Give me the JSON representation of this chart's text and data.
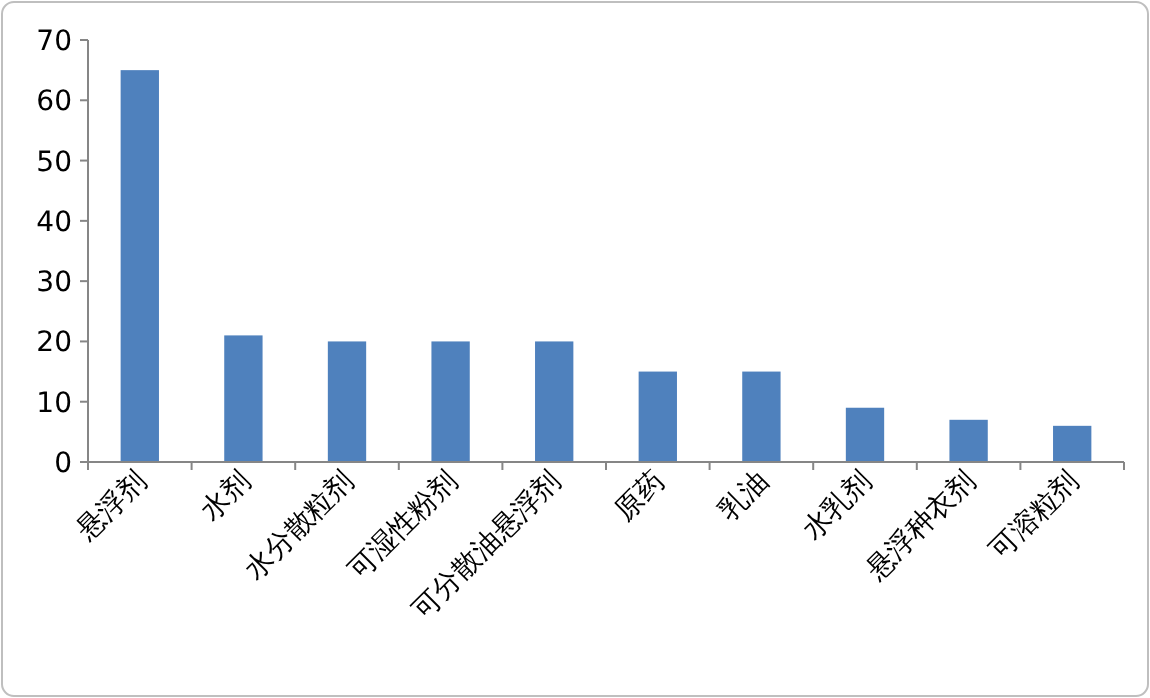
{
  "chart_data": {
    "type": "bar",
    "categories": [
      "悬浮剂",
      "水剂",
      "水分散粒剂",
      "可湿性粉剂",
      "可分散油悬浮剂",
      "原药",
      "乳油",
      "水乳剂",
      "悬浮种衣剂",
      "可溶粒剂"
    ],
    "values": [
      65,
      21,
      20,
      20,
      20,
      15,
      15,
      9,
      7,
      6
    ],
    "color": "#4f81bd",
    "ylim": [
      0,
      70
    ],
    "yticks": [
      0,
      10,
      20,
      30,
      40,
      50,
      60,
      70
    ]
  }
}
